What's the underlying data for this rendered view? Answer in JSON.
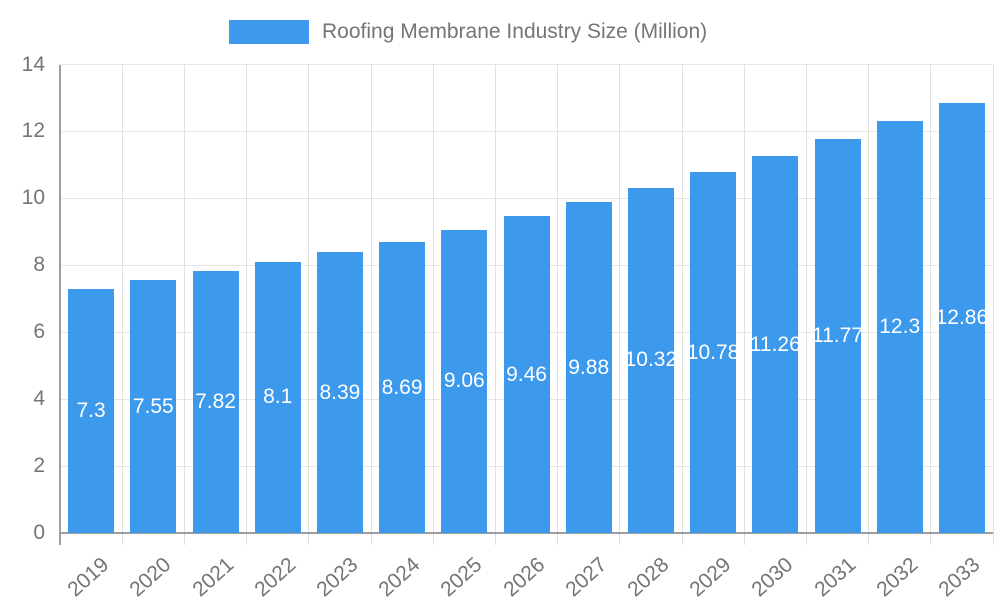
{
  "legend": {
    "label": "Roofing Membrane Industry Size (Million)"
  },
  "colors": {
    "bar": "#3d99ec",
    "bar_label": "#ffffff",
    "grid_horizontal": "#e6e6e6",
    "grid_vertical": "#e0e0e0",
    "axis": "#9e9e9e",
    "tick_text": "#757575"
  },
  "chart_data": {
    "type": "bar",
    "title": "Roofing Membrane Industry Size (Million)",
    "categories": [
      "2019",
      "2020",
      "2021",
      "2022",
      "2023",
      "2024",
      "2025",
      "2026",
      "2027",
      "2028",
      "2029",
      "2030",
      "2031",
      "2032",
      "2033"
    ],
    "values": [
      7.3,
      7.55,
      7.82,
      8.1,
      8.39,
      8.69,
      9.06,
      9.46,
      9.88,
      10.32,
      10.78,
      11.26,
      11.77,
      12.3,
      12.86
    ],
    "value_labels": [
      "7.3",
      "7.55",
      "7.82",
      "8.1",
      "8.39",
      "8.69",
      "9.06",
      "9.46",
      "9.88",
      "10.32",
      "10.78",
      "11.26",
      "11.77",
      "12.3",
      "12.86"
    ],
    "xlabel": "",
    "ylabel": "",
    "ylim": [
      0,
      14
    ],
    "yticks": [
      0,
      2,
      4,
      6,
      8,
      10,
      12,
      14
    ],
    "grid": true,
    "legend_position": "top",
    "bar_label_position": "center-inside",
    "x_tick_rotation_deg": -42
  }
}
